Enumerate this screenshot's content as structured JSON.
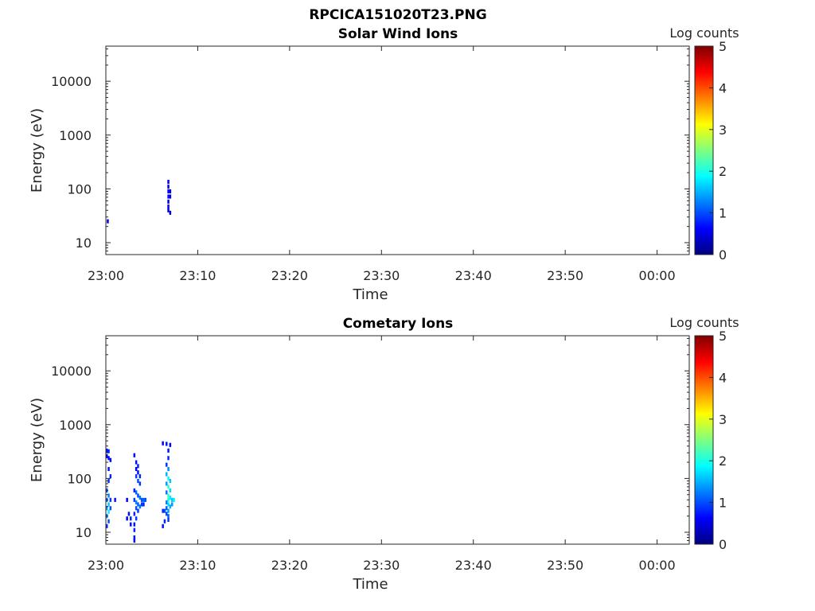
{
  "figure_title": "RPCICA151020T23.PNG",
  "colormap": [
    "#00007f",
    "#0000ff",
    "#007fff",
    "#00ffff",
    "#7fff7f",
    "#ffff00",
    "#ff7f00",
    "#ff0000",
    "#7f0000"
  ],
  "chart_data": [
    {
      "type": "heatmap",
      "title": "Solar Wind Ions",
      "xlabel": "Time",
      "ylabel": "Energy (eV)",
      "x_ticks": [
        "23:00",
        "23:10",
        "23:20",
        "23:30",
        "23:40",
        "23:50",
        "00:00"
      ],
      "x_range_minutes": [
        0,
        63.5
      ],
      "y_ticks": [
        {
          "label": "10",
          "value": 10
        },
        {
          "label": "100",
          "value": 100
        },
        {
          "label": "1000",
          "value": 1000
        },
        {
          "label": "10000",
          "value": 10000
        }
      ],
      "y_scale": "log",
      "y_range": [
        6,
        45000
      ],
      "colorbar": {
        "label": "Log counts",
        "range": [
          0,
          5
        ],
        "ticks": [
          "0",
          "1",
          "2",
          "3",
          "4",
          "5"
        ]
      },
      "cells": [
        {
          "t": 0.1,
          "e": 25,
          "v": 0.4
        },
        {
          "t": 6.7,
          "e": 135,
          "v": 0.6
        },
        {
          "t": 6.7,
          "e": 110,
          "v": 0.5
        },
        {
          "t": 6.7,
          "e": 90,
          "v": 0.6
        },
        {
          "t": 6.7,
          "e": 72,
          "v": 0.7
        },
        {
          "t": 6.7,
          "e": 58,
          "v": 0.5
        },
        {
          "t": 6.7,
          "e": 47,
          "v": 0.6
        },
        {
          "t": 6.7,
          "e": 40,
          "v": 0.5
        },
        {
          "t": 6.9,
          "e": 90,
          "v": 0.5
        },
        {
          "t": 6.9,
          "e": 72,
          "v": 0.6
        },
        {
          "t": 6.9,
          "e": 36,
          "v": 0.5
        }
      ]
    },
    {
      "type": "heatmap",
      "title": "Cometary Ions",
      "xlabel": "Time",
      "ylabel": "Energy (eV)",
      "x_ticks": [
        "23:00",
        "23:10",
        "23:20",
        "23:30",
        "23:40",
        "23:50",
        "00:00"
      ],
      "x_range_minutes": [
        0,
        63.5
      ],
      "y_ticks": [
        {
          "label": "10",
          "value": 10
        },
        {
          "label": "100",
          "value": 100
        },
        {
          "label": "1000",
          "value": 1000
        },
        {
          "label": "10000",
          "value": 10000
        }
      ],
      "y_scale": "log",
      "y_range": [
        6,
        45000
      ],
      "colorbar": {
        "label": "Log counts",
        "range": [
          0,
          5
        ],
        "ticks": [
          "0",
          "1",
          "2",
          "3",
          "4",
          "5"
        ]
      },
      "cells": [
        {
          "t": 0.0,
          "e": 330,
          "v": 0.7
        },
        {
          "t": 0.2,
          "e": 320,
          "v": 0.8
        },
        {
          "t": 0.0,
          "e": 260,
          "v": 0.6
        },
        {
          "t": 0.2,
          "e": 240,
          "v": 0.7
        },
        {
          "t": 0.4,
          "e": 220,
          "v": 0.6
        },
        {
          "t": 0.2,
          "e": 150,
          "v": 0.7
        },
        {
          "t": 0.4,
          "e": 110,
          "v": 0.8
        },
        {
          "t": 0.2,
          "e": 90,
          "v": 0.9
        },
        {
          "t": 0.0,
          "e": 60,
          "v": 1.0
        },
        {
          "t": 0.2,
          "e": 48,
          "v": 1.3
        },
        {
          "t": 0.0,
          "e": 40,
          "v": 1.1
        },
        {
          "t": 0.2,
          "e": 33,
          "v": 1.6
        },
        {
          "t": 0.0,
          "e": 28,
          "v": 1.4
        },
        {
          "t": 0.2,
          "e": 24,
          "v": 1.8
        },
        {
          "t": 0.0,
          "e": 20,
          "v": 1.2
        },
        {
          "t": 0.2,
          "e": 16,
          "v": 1.0
        },
        {
          "t": 0.0,
          "e": 13,
          "v": 0.8
        },
        {
          "t": 0.4,
          "e": 40,
          "v": 0.9
        },
        {
          "t": 0.4,
          "e": 28,
          "v": 1.0
        },
        {
          "t": 0.9,
          "e": 40,
          "v": 0.7
        },
        {
          "t": 2.2,
          "e": 40,
          "v": 0.6
        },
        {
          "t": 2.4,
          "e": 22,
          "v": 0.7
        },
        {
          "t": 2.2,
          "e": 18,
          "v": 0.6
        },
        {
          "t": 2.6,
          "e": 18,
          "v": 0.8
        },
        {
          "t": 2.6,
          "e": 14,
          "v": 0.7
        },
        {
          "t": 3.0,
          "e": 270,
          "v": 0.6
        },
        {
          "t": 3.2,
          "e": 200,
          "v": 0.7
        },
        {
          "t": 3.4,
          "e": 170,
          "v": 0.8
        },
        {
          "t": 3.2,
          "e": 150,
          "v": 0.6
        },
        {
          "t": 3.4,
          "e": 130,
          "v": 0.7
        },
        {
          "t": 3.2,
          "e": 110,
          "v": 0.9
        },
        {
          "t": 3.6,
          "e": 110,
          "v": 0.8
        },
        {
          "t": 3.4,
          "e": 90,
          "v": 1.0
        },
        {
          "t": 3.6,
          "e": 80,
          "v": 0.9
        },
        {
          "t": 3.0,
          "e": 60,
          "v": 0.8
        },
        {
          "t": 3.2,
          "e": 55,
          "v": 1.1
        },
        {
          "t": 3.4,
          "e": 48,
          "v": 1.0
        },
        {
          "t": 3.6,
          "e": 44,
          "v": 1.2
        },
        {
          "t": 3.0,
          "e": 40,
          "v": 0.9
        },
        {
          "t": 3.2,
          "e": 36,
          "v": 1.3
        },
        {
          "t": 3.4,
          "e": 33,
          "v": 1.1
        },
        {
          "t": 3.6,
          "e": 30,
          "v": 1.2
        },
        {
          "t": 3.2,
          "e": 28,
          "v": 1.0
        },
        {
          "t": 3.4,
          "e": 25,
          "v": 0.9
        },
        {
          "t": 3.0,
          "e": 22,
          "v": 0.8
        },
        {
          "t": 3.2,
          "e": 18,
          "v": 0.9
        },
        {
          "t": 3.0,
          "e": 14,
          "v": 0.7
        },
        {
          "t": 3.0,
          "e": 11,
          "v": 0.8
        },
        {
          "t": 3.0,
          "e": 8,
          "v": 0.7
        },
        {
          "t": 3.0,
          "e": 7,
          "v": 0.6
        },
        {
          "t": 3.8,
          "e": 40,
          "v": 1.0
        },
        {
          "t": 3.8,
          "e": 33,
          "v": 0.9
        },
        {
          "t": 4.0,
          "e": 40,
          "v": 1.1
        },
        {
          "t": 4.2,
          "e": 40,
          "v": 1.0
        },
        {
          "t": 4.0,
          "e": 33,
          "v": 0.8
        },
        {
          "t": 6.1,
          "e": 450,
          "v": 0.6
        },
        {
          "t": 6.5,
          "e": 440,
          "v": 0.7
        },
        {
          "t": 6.9,
          "e": 420,
          "v": 0.6
        },
        {
          "t": 6.7,
          "e": 330,
          "v": 0.7
        },
        {
          "t": 6.7,
          "e": 240,
          "v": 0.8
        },
        {
          "t": 6.5,
          "e": 180,
          "v": 0.9
        },
        {
          "t": 6.7,
          "e": 150,
          "v": 1.3
        },
        {
          "t": 6.5,
          "e": 120,
          "v": 1.5
        },
        {
          "t": 6.7,
          "e": 100,
          "v": 1.9
        },
        {
          "t": 6.9,
          "e": 90,
          "v": 1.6
        },
        {
          "t": 6.5,
          "e": 80,
          "v": 1.4
        },
        {
          "t": 6.7,
          "e": 70,
          "v": 2.1
        },
        {
          "t": 6.9,
          "e": 60,
          "v": 1.7
        },
        {
          "t": 6.5,
          "e": 55,
          "v": 1.2
        },
        {
          "t": 6.7,
          "e": 48,
          "v": 2.2
        },
        {
          "t": 6.9,
          "e": 44,
          "v": 1.8
        },
        {
          "t": 7.1,
          "e": 40,
          "v": 1.6
        },
        {
          "t": 6.7,
          "e": 40,
          "v": 2.0
        },
        {
          "t": 6.5,
          "e": 36,
          "v": 1.3
        },
        {
          "t": 6.7,
          "e": 33,
          "v": 1.7
        },
        {
          "t": 6.9,
          "e": 30,
          "v": 1.5
        },
        {
          "t": 6.5,
          "e": 28,
          "v": 1.1
        },
        {
          "t": 6.7,
          "e": 25,
          "v": 1.4
        },
        {
          "t": 6.3,
          "e": 25,
          "v": 1.0
        },
        {
          "t": 6.1,
          "e": 25,
          "v": 0.8
        },
        {
          "t": 6.5,
          "e": 22,
          "v": 1.0
        },
        {
          "t": 6.7,
          "e": 20,
          "v": 1.1
        },
        {
          "t": 6.3,
          "e": 16,
          "v": 0.8
        },
        {
          "t": 6.1,
          "e": 13,
          "v": 0.7
        },
        {
          "t": 6.7,
          "e": 17,
          "v": 0.9
        },
        {
          "t": 7.3,
          "e": 40,
          "v": 1.8
        },
        {
          "t": 7.1,
          "e": 33,
          "v": 1.4
        }
      ]
    }
  ]
}
